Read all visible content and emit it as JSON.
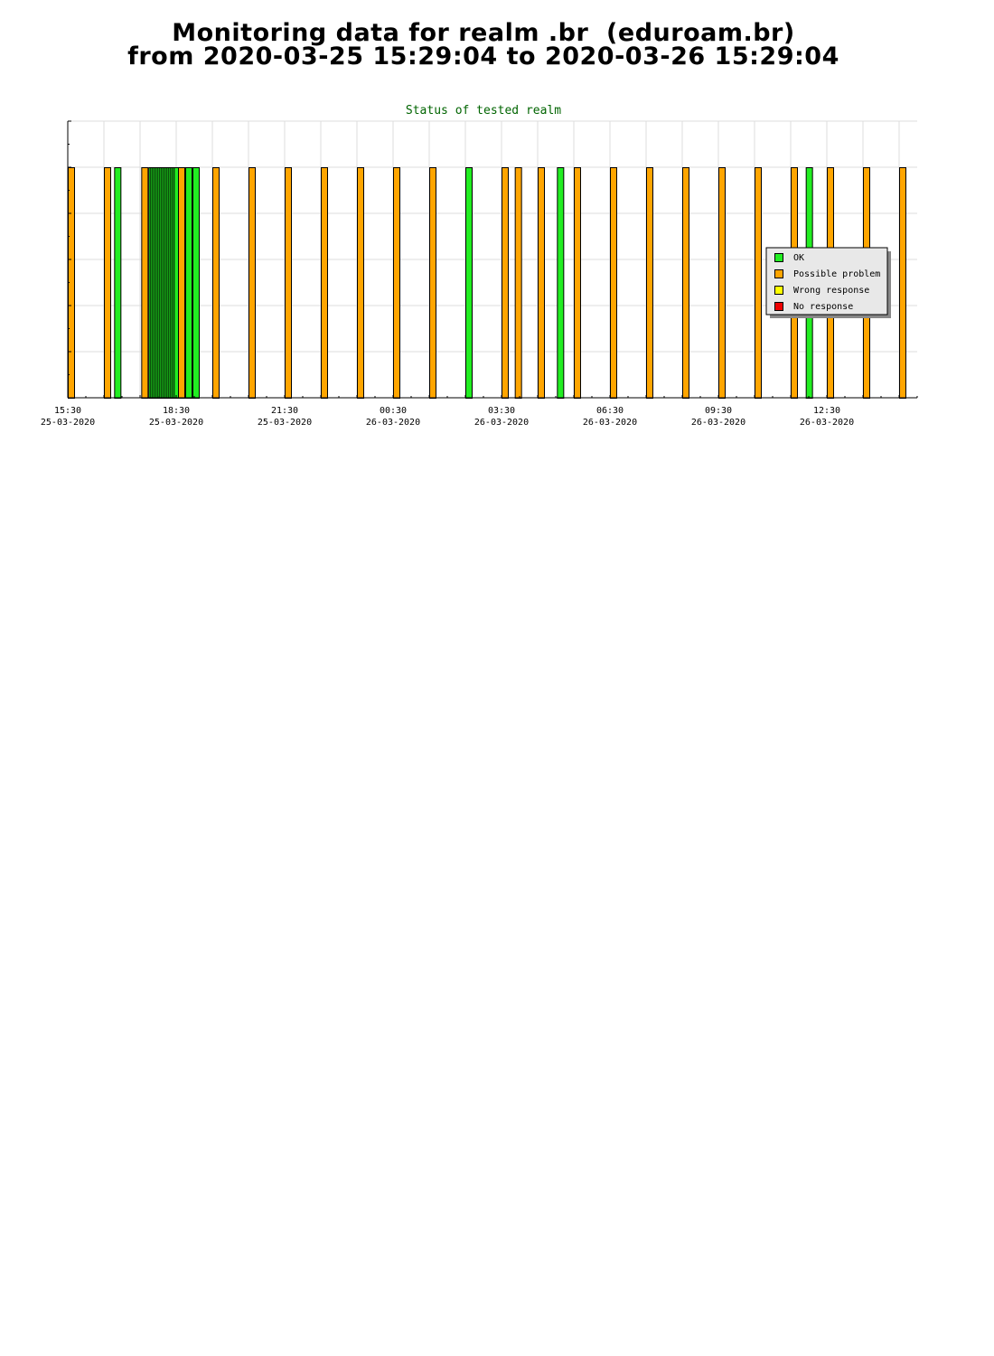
{
  "page": {
    "title_line1": "Monitoring data for realm .br  (eduroam.br)",
    "title_line2": "from 2020-03-25 15:29:04 to 2020-03-26 15:29:04"
  },
  "colors": {
    "ok": "#22ee22",
    "possible_problem": "#ffa500",
    "wrong_response": "#ffff00",
    "no_response": "#ee0000",
    "title_text": "#006400",
    "legend_bg": "#e8e8e8",
    "grid": "#dddddd"
  },
  "chart_data": {
    "type": "bar",
    "title": "Status of tested realm",
    "xlabel": "",
    "ylabel": "",
    "grid": true,
    "legend_position": "right-middle",
    "x_ticks": [
      {
        "time": "15:30",
        "date": "25-03-2020"
      },
      {
        "time": "18:30",
        "date": "25-03-2020"
      },
      {
        "time": "21:30",
        "date": "25-03-2020"
      },
      {
        "time": "00:30",
        "date": "26-03-2020"
      },
      {
        "time": "03:30",
        "date": "26-03-2020"
      },
      {
        "time": "06:30",
        "date": "26-03-2020"
      },
      {
        "time": "09:30",
        "date": "26-03-2020"
      },
      {
        "time": "12:30",
        "date": "26-03-2020"
      }
    ],
    "xlim": [
      "2020-03-25 15:30",
      "2020-03-26 15:05"
    ],
    "ylim": [
      0,
      6
    ],
    "y_ticks": [
      0,
      1,
      2,
      3,
      4,
      5,
      6
    ],
    "series": [
      {
        "name": "OK",
        "status": "ok"
      },
      {
        "name": "Possible problem",
        "status": "possible_problem"
      },
      {
        "name": "Wrong response",
        "status": "wrong_response"
      },
      {
        "name": "No response",
        "status": "no_response"
      }
    ],
    "bars": [
      {
        "time": "2020-03-25 15:30",
        "status": "possible_problem",
        "value": 5
      },
      {
        "time": "2020-03-25 16:30",
        "status": "possible_problem",
        "value": 5
      },
      {
        "time": "2020-03-25 16:47",
        "status": "ok",
        "value": 5
      },
      {
        "time": "2020-03-25 17:32",
        "status": "possible_problem",
        "value": 5
      },
      {
        "time": "2020-03-25 17:44",
        "status": "ok",
        "value": 5
      },
      {
        "time": "2020-03-25 17:47",
        "status": "ok",
        "value": 5
      },
      {
        "time": "2020-03-25 17:50",
        "status": "ok",
        "value": 5
      },
      {
        "time": "2020-03-25 17:53",
        "status": "ok",
        "value": 5
      },
      {
        "time": "2020-03-25 17:56",
        "status": "ok",
        "value": 5
      },
      {
        "time": "2020-03-25 17:59",
        "status": "ok",
        "value": 5
      },
      {
        "time": "2020-03-25 18:02",
        "status": "ok",
        "value": 5
      },
      {
        "time": "2020-03-25 18:05",
        "status": "ok",
        "value": 5
      },
      {
        "time": "2020-03-25 18:08",
        "status": "ok",
        "value": 5
      },
      {
        "time": "2020-03-25 18:11",
        "status": "ok",
        "value": 5
      },
      {
        "time": "2020-03-25 18:14",
        "status": "ok",
        "value": 5
      },
      {
        "time": "2020-03-25 18:17",
        "status": "ok",
        "value": 5
      },
      {
        "time": "2020-03-25 18:20",
        "status": "ok",
        "value": 5
      },
      {
        "time": "2020-03-25 18:23",
        "status": "ok",
        "value": 5
      },
      {
        "time": "2020-03-25 18:26",
        "status": "ok",
        "value": 5
      },
      {
        "time": "2020-03-25 18:33",
        "status": "possible_problem",
        "value": 5
      },
      {
        "time": "2020-03-25 18:45",
        "status": "ok",
        "value": 5
      },
      {
        "time": "2020-03-25 18:57",
        "status": "ok",
        "value": 5
      },
      {
        "time": "2020-03-25 19:30",
        "status": "possible_problem",
        "value": 5
      },
      {
        "time": "2020-03-25 20:30",
        "status": "possible_problem",
        "value": 5
      },
      {
        "time": "2020-03-25 21:30",
        "status": "possible_problem",
        "value": 5
      },
      {
        "time": "2020-03-25 22:30",
        "status": "possible_problem",
        "value": 5
      },
      {
        "time": "2020-03-25 23:30",
        "status": "possible_problem",
        "value": 5
      },
      {
        "time": "2020-03-26 00:30",
        "status": "possible_problem",
        "value": 5
      },
      {
        "time": "2020-03-26 01:30",
        "status": "possible_problem",
        "value": 5
      },
      {
        "time": "2020-03-26 02:30",
        "status": "ok",
        "value": 5
      },
      {
        "time": "2020-03-26 03:30",
        "status": "possible_problem",
        "value": 5
      },
      {
        "time": "2020-03-26 03:52",
        "status": "possible_problem",
        "value": 5
      },
      {
        "time": "2020-03-26 04:30",
        "status": "possible_problem",
        "value": 5
      },
      {
        "time": "2020-03-26 05:02",
        "status": "ok",
        "value": 5
      },
      {
        "time": "2020-03-26 05:30",
        "status": "possible_problem",
        "value": 5
      },
      {
        "time": "2020-03-26 06:30",
        "status": "possible_problem",
        "value": 5
      },
      {
        "time": "2020-03-26 07:30",
        "status": "possible_problem",
        "value": 5
      },
      {
        "time": "2020-03-26 08:30",
        "status": "possible_problem",
        "value": 5
      },
      {
        "time": "2020-03-26 09:30",
        "status": "possible_problem",
        "value": 5
      },
      {
        "time": "2020-03-26 10:30",
        "status": "possible_problem",
        "value": 5
      },
      {
        "time": "2020-03-26 11:30",
        "status": "possible_problem",
        "value": 5
      },
      {
        "time": "2020-03-26 11:55",
        "status": "ok",
        "value": 5
      },
      {
        "time": "2020-03-26 12:30",
        "status": "possible_problem",
        "value": 5
      },
      {
        "time": "2020-03-26 13:30",
        "status": "possible_problem",
        "value": 5
      },
      {
        "time": "2020-03-26 14:30",
        "status": "possible_problem",
        "value": 5
      }
    ]
  }
}
